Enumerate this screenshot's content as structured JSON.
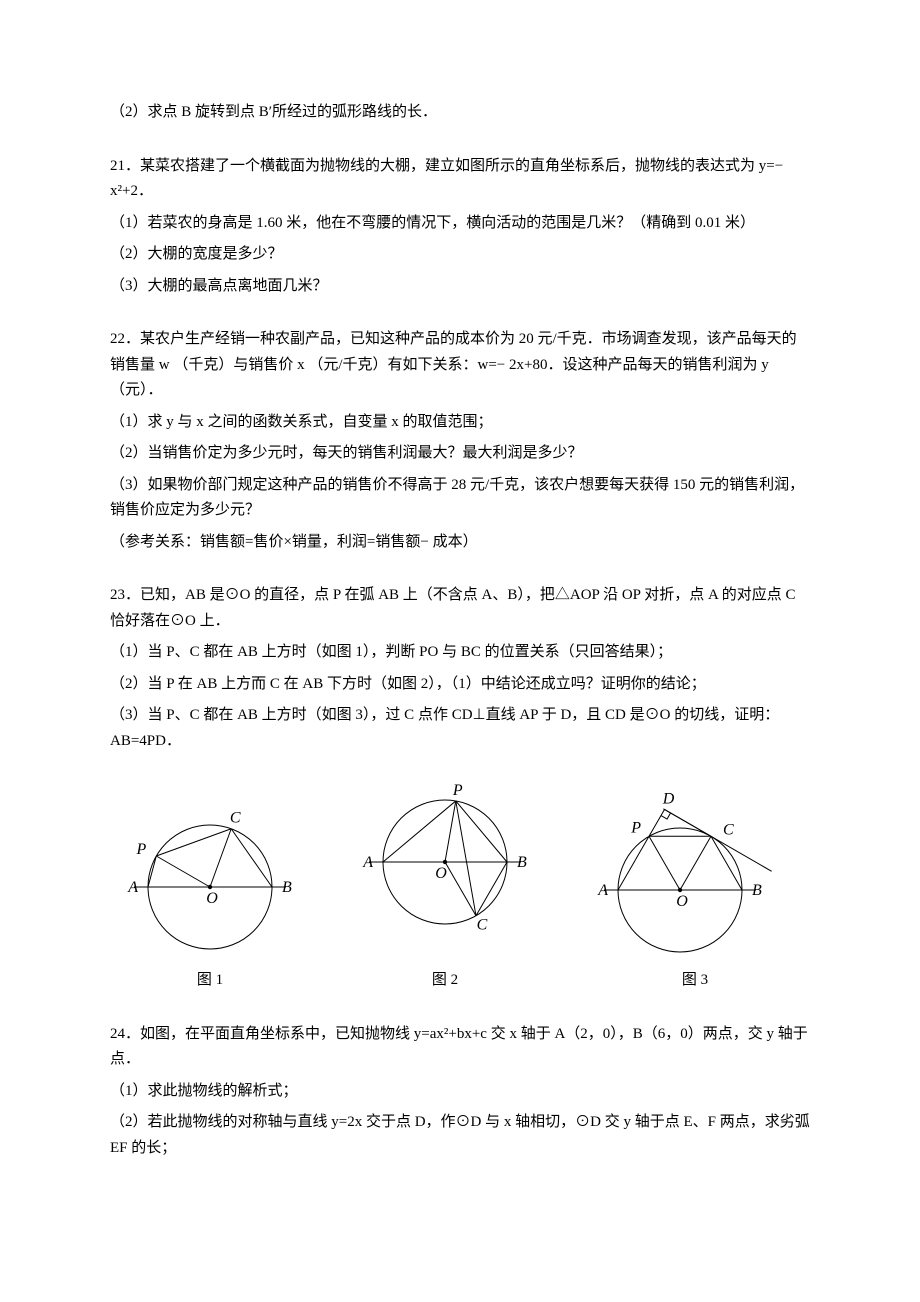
{
  "q20_2": "（2）求点 B 旋转到点 B′所经过的弧形路线的长．",
  "q21_intro": "21．某菜农搭建了一个横截面为抛物线的大棚，建立如图所示的直角坐标系后，抛物线的表达式为 y=− x²+2．",
  "q21_1": "（1）若菜农的身高是 1.60 米，他在不弯腰的情况下，横向活动的范围是几米？（精确到 0.01 米）",
  "q21_2": "（2）大棚的宽度是多少？",
  "q21_3": "（3）大棚的最高点离地面几米？",
  "q22_intro": "22．某农户生产经销一种农副产品，已知这种产品的成本价为 20 元/千克．市场调查发现，该产品每天的销售量 w （千克）与销售价 x （元/千克）有如下关系：w=− 2x+80．设这种产品每天的销售利润为 y （元）．",
  "q22_1": "（1）求 y 与 x 之间的函数关系式，自变量 x 的取值范围；",
  "q22_2": "（2）当销售价定为多少元时，每天的销售利润最大？最大利润是多少？",
  "q22_3": "（3）如果物价部门规定这种产品的销售价不得高于 28 元/千克，该农户想要每天获得 150 元的销售利润，销售价应定为多少元？",
  "q22_ref": "（参考关系：销售额=售价×销量，利润=销售额− 成本）",
  "q23_intro": "23．已知，AB 是⊙O 的直径，点 P 在弧 AB 上（不含点 A、B），把△AOP 沿 OP 对折，点 A 的对应点 C 恰好落在⊙O 上．",
  "q23_1": "（1）当 P、C 都在 AB 上方时（如图 1），判断 PO 与 BC 的位置关系（只回答结果）；",
  "q23_2": "（2）当 P 在 AB 上方而 C 在 AB 下方时（如图 2），（1）中结论还成立吗？证明你的结论；",
  "q23_3": "（3）当 P、C 都在 AB 上方时（如图 3），过 C 点作 CD⊥直线 AP 于 D，且 CD 是⊙O 的切线，证明：AB=4PD．",
  "fig1_label": "图 1",
  "fig2_label": "图 2",
  "fig3_label": "图 3",
  "q24_intro": "24．如图，在平面直角坐标系中，已知抛物线 y=ax²+bx+c 交 x 轴于 A（2，0），B（6，0）两点，交 y 轴于点．",
  "q24_1": "（1）求此抛物线的解析式；",
  "q24_2": "（2）若此抛物线的对称轴与直线 y=2x 交于点 D，作⊙D 与 x 轴相切，⊙D 交 y 轴于点 E、F 两点，求劣弧 EF 的长；",
  "fig": {
    "stroke": "#000000",
    "bg": "#ffffff",
    "circle_r": 62,
    "font": "italic 16px 'Times New Roman', serif",
    "label_font": "16px 'SimSun', serif"
  }
}
